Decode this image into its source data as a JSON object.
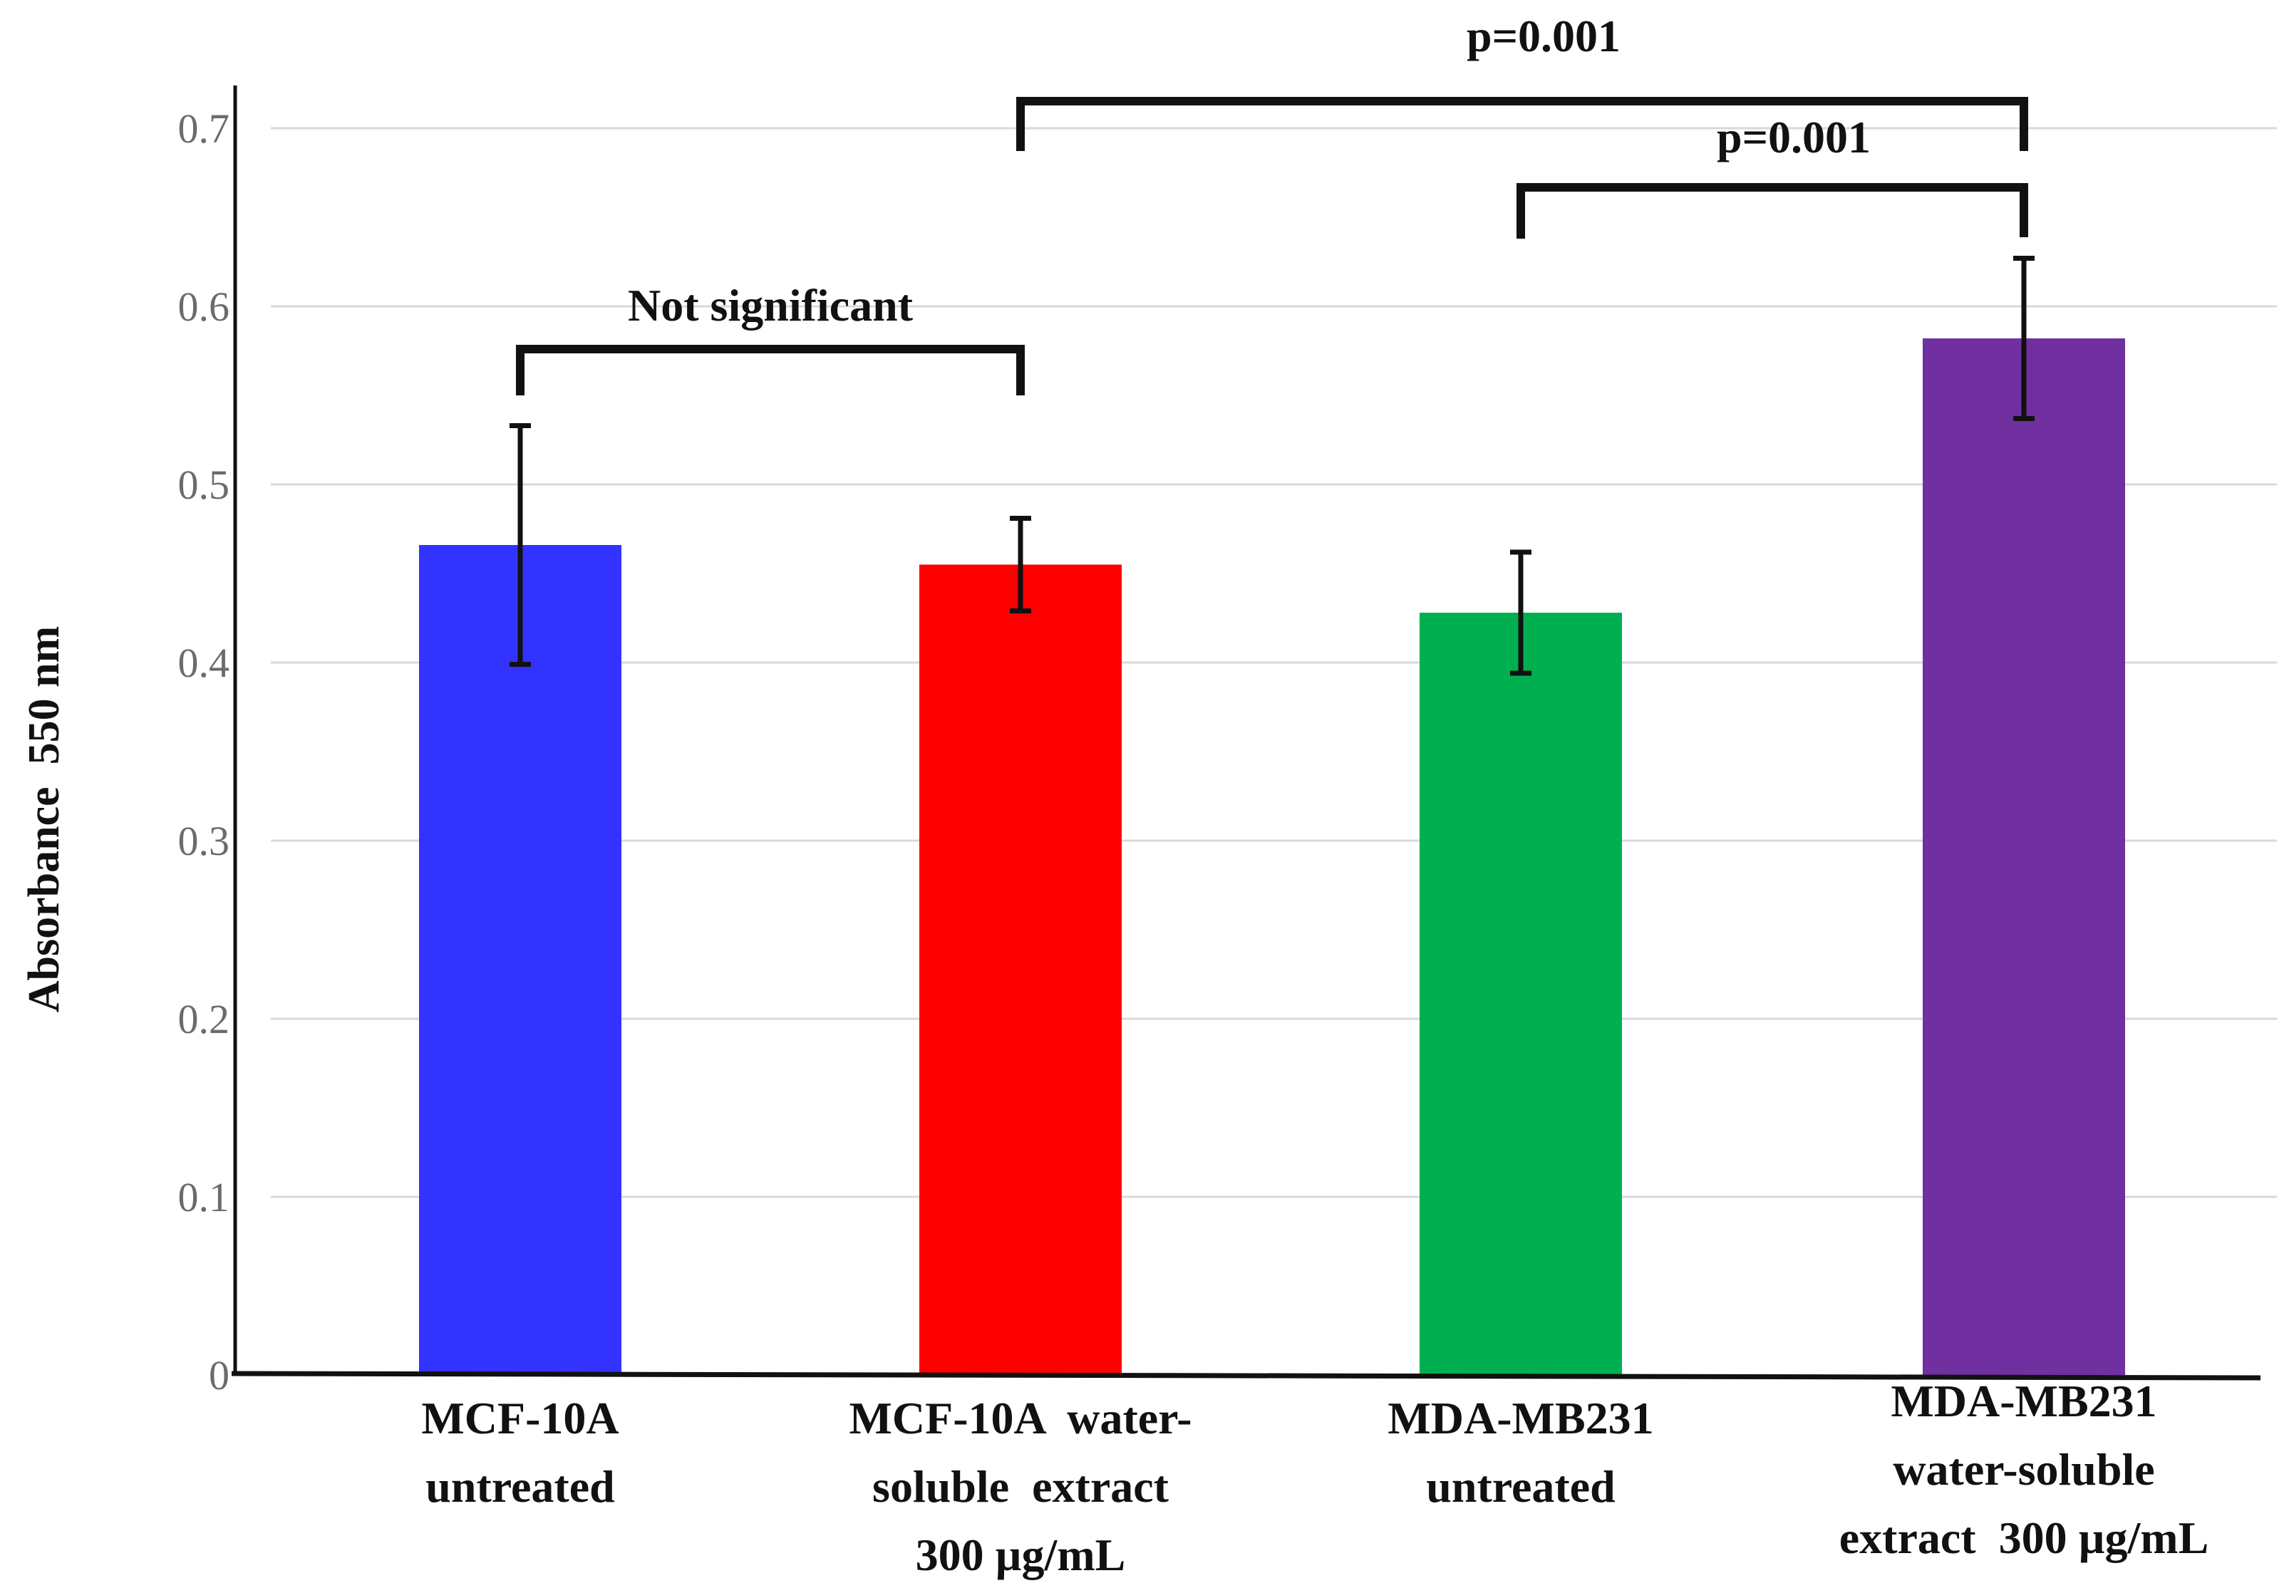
{
  "chart_data": {
    "type": "bar",
    "title": "",
    "xlabel": "",
    "ylabel": "Absorbance  550 nm",
    "ylim": [
      0,
      0.7
    ],
    "yticks": [
      "0",
      "0.1",
      "0.2",
      "0.3",
      "0.4",
      "0.5",
      "0.6",
      "0.7"
    ],
    "grid": true,
    "categories": [
      [
        "MCF-10A",
        "untreated"
      ],
      [
        "MCF-10A  water-",
        "soluble  extract",
        "300 µg/mL"
      ],
      [
        "MDA-MB231",
        "untreated"
      ],
      [
        "MDA-MB231",
        "water-soluble",
        "extract  300 µg/mL"
      ]
    ],
    "values": [
      0.466,
      0.455,
      0.428,
      0.582
    ],
    "errors": [
      0.067,
      0.026,
      0.034,
      0.045
    ],
    "colors": [
      "#3333ff",
      "#ff0000",
      "#00b050",
      "#7030a0"
    ],
    "annotations": [
      {
        "label": "Not significant",
        "from": 0,
        "to": 1
      },
      {
        "label": "p=0.001",
        "from": 1,
        "to": 3
      },
      {
        "label": "p=0.001",
        "from": 2,
        "to": 3
      }
    ]
  }
}
